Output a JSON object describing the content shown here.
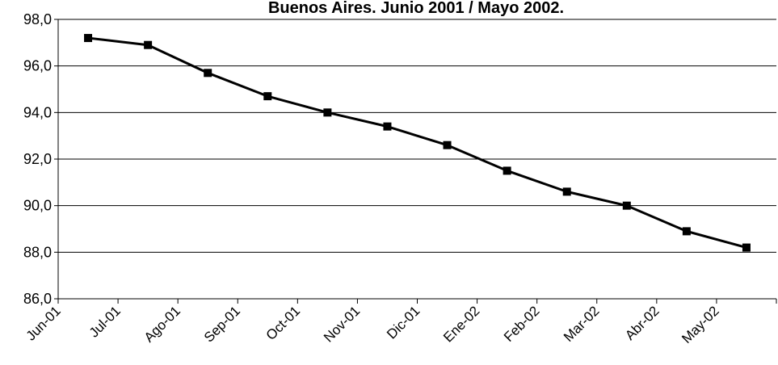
{
  "chart_data": {
    "type": "line",
    "title": "Buenos Aires. Junio 2001 / Mayo 2002.",
    "categories": [
      "Jun-01",
      "Jul-01",
      "Ago-01",
      "Sep-01",
      "Oct-01",
      "Nov-01",
      "Dic-01",
      "Ene-02",
      "Feb-02",
      "Mar-02",
      "Abr-02",
      "May-02"
    ],
    "series": [
      {
        "values": [
          97.2,
          96.9,
          95.7,
          94.7,
          94.0,
          93.4,
          92.6,
          91.5,
          90.6,
          90.0,
          88.9,
          88.2
        ]
      }
    ],
    "ylim": [
      86.0,
      98.0
    ],
    "y_ticks": [
      "86,0",
      "88,0",
      "90,0",
      "92,0",
      "94,0",
      "96,0",
      "98,0"
    ],
    "grid": true,
    "legend": "none",
    "line_color": "#000000",
    "marker": "square"
  }
}
